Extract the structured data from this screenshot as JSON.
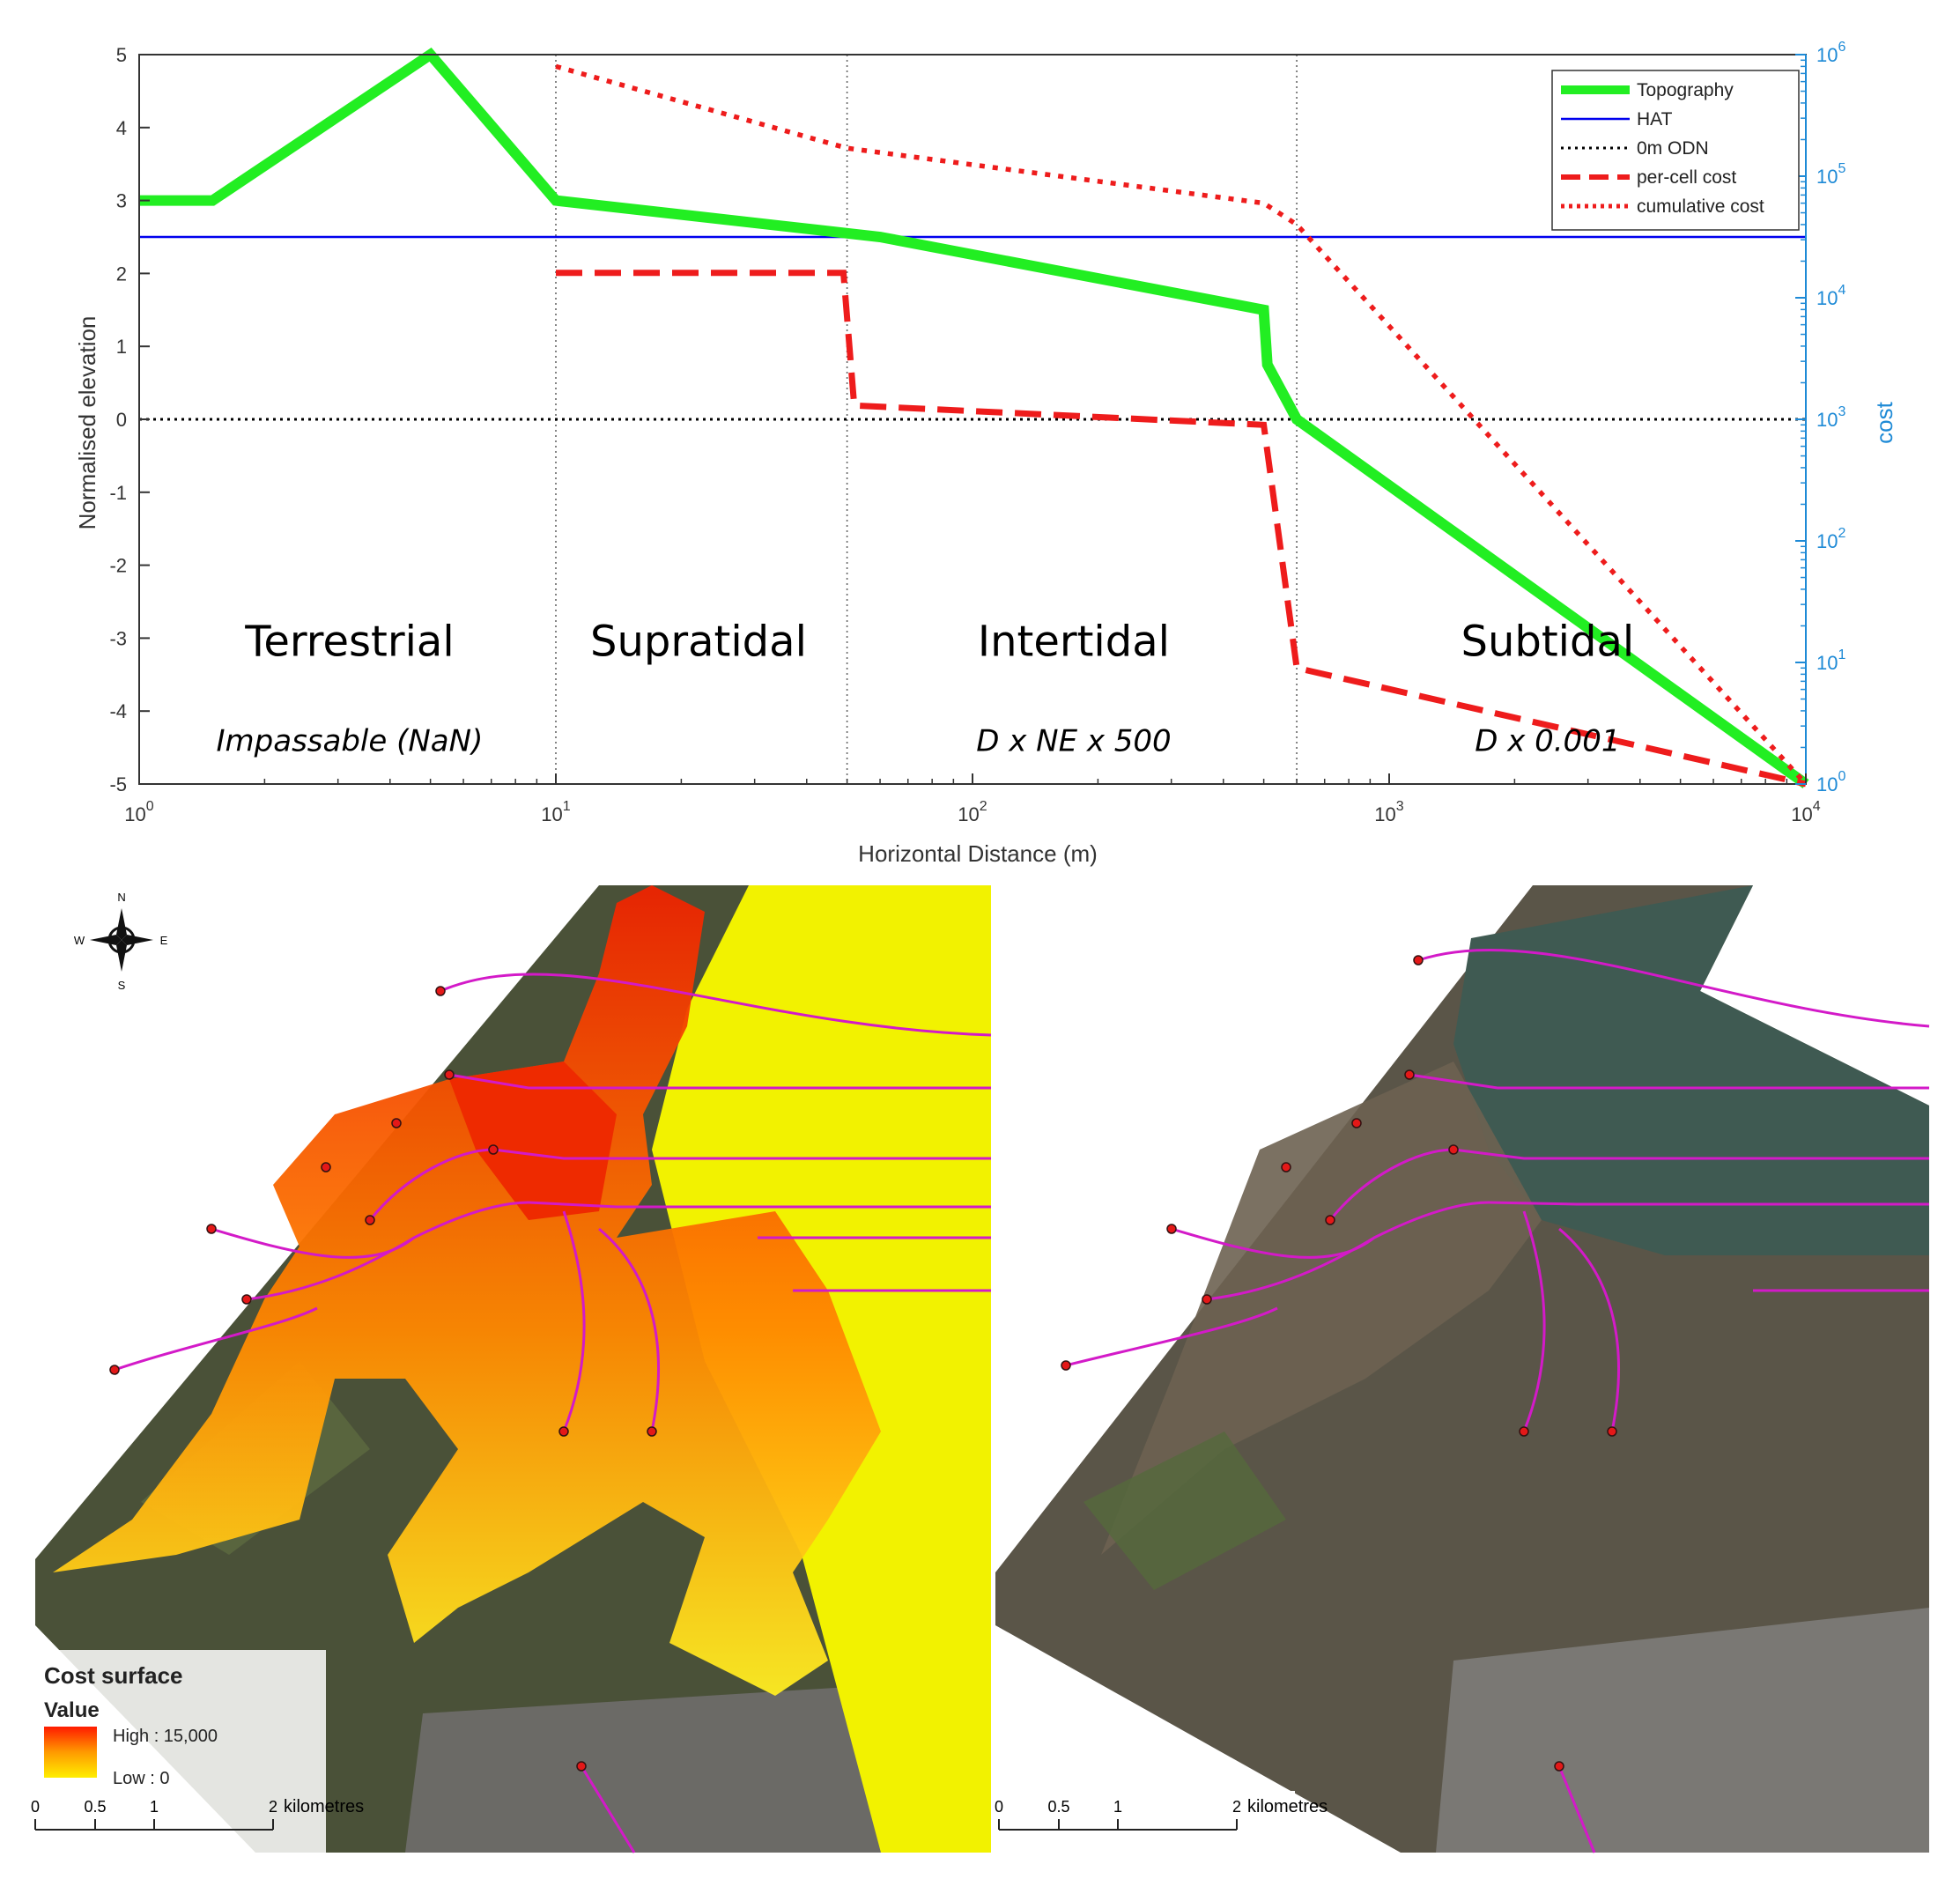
{
  "chart_data": {
    "type": "line",
    "xlabel": "Horizontal Distance (m)",
    "ylabel": "Normalised elevation",
    "y2label": "cost",
    "xscale": "log",
    "xlim": [
      1,
      10000
    ],
    "ylim": [
      -5,
      5
    ],
    "y2scale": "log",
    "y2lim": [
      1,
      1000000
    ],
    "grid": false,
    "legend_position": "top-right",
    "x_ticks": [
      1,
      10,
      100,
      1000,
      10000
    ],
    "x_tick_labels": [
      {
        "b": "10",
        "e": "0"
      },
      {
        "b": "10",
        "e": "1"
      },
      {
        "b": "10",
        "e": "2"
      },
      {
        "b": "10",
        "e": "3"
      },
      {
        "b": "10",
        "e": "4"
      }
    ],
    "y_ticks": [
      "5",
      "4",
      "3",
      "2",
      "1",
      "0",
      "-1",
      "-2",
      "-3",
      "-4",
      "-5"
    ],
    "y2_tick_labels": [
      {
        "b": "10",
        "e": "6"
      },
      {
        "b": "10",
        "e": "5"
      },
      {
        "b": "10",
        "e": "4"
      },
      {
        "b": "10",
        "e": "3"
      },
      {
        "b": "10",
        "e": "2"
      },
      {
        "b": "10",
        "e": "1"
      },
      {
        "b": "10",
        "e": "0"
      }
    ],
    "zone_boundaries": [
      10,
      50,
      600
    ],
    "zones": [
      {
        "name": "Terrestrial",
        "rule": "Impassable (NaN)",
        "x_center": 3.2
      },
      {
        "name": "Supratidal",
        "rule": "",
        "x_center": 22
      },
      {
        "name": "Intertidal",
        "rule": "D x NE x 500",
        "x_center": 175
      },
      {
        "name": "Subtidal",
        "rule": "D x 0.001",
        "x_center": 2400
      }
    ],
    "series": [
      {
        "name": "Topography",
        "axis": "left",
        "color": "#22ee22",
        "style": "solid-thick",
        "x": [
          1,
          1.5,
          5,
          10,
          60,
          500,
          510,
          600,
          10000
        ],
        "y": [
          3.0,
          3.0,
          5.0,
          3.0,
          2.5,
          1.5,
          0.75,
          0.0,
          -5.0
        ]
      },
      {
        "name": "HAT",
        "axis": "left",
        "color": "#0000ee",
        "style": "solid-thin",
        "x": [
          1,
          10000
        ],
        "y": [
          2.5,
          2.5
        ]
      },
      {
        "name": "0m ODN",
        "axis": "left",
        "color": "#000000",
        "style": "dotted",
        "x": [
          1,
          10000
        ],
        "y": [
          0,
          0
        ]
      },
      {
        "name": "per-cell cost",
        "axis": "right",
        "color": "#ee1c1c",
        "style": "dashed",
        "x": [
          10,
          49,
          52,
          500,
          600,
          10000
        ],
        "y": [
          16000,
          16000,
          1300,
          900,
          9,
          1
        ]
      },
      {
        "name": "cumulative cost",
        "axis": "right",
        "color": "#ee1c1c",
        "style": "dotted-thick",
        "x": [
          10,
          50,
          500,
          600,
          10000
        ],
        "y": [
          800000,
          170000,
          60000,
          40000,
          1
        ]
      }
    ]
  },
  "map_left": {
    "compass": {
      "n": "N",
      "s": "S",
      "e": "E",
      "w": "W"
    },
    "legend": {
      "title": "Cost surface",
      "value_label": "Value",
      "high": "High : 15,000",
      "low": "Low : 0"
    },
    "scalebar": {
      "ticks": [
        "0",
        "0.5",
        "1",
        "2"
      ],
      "unit": "kilometres"
    }
  },
  "map_right": {
    "scalebar": {
      "ticks": [
        "0",
        "0.5",
        "1",
        "2"
      ],
      "unit": "kilometres"
    }
  }
}
